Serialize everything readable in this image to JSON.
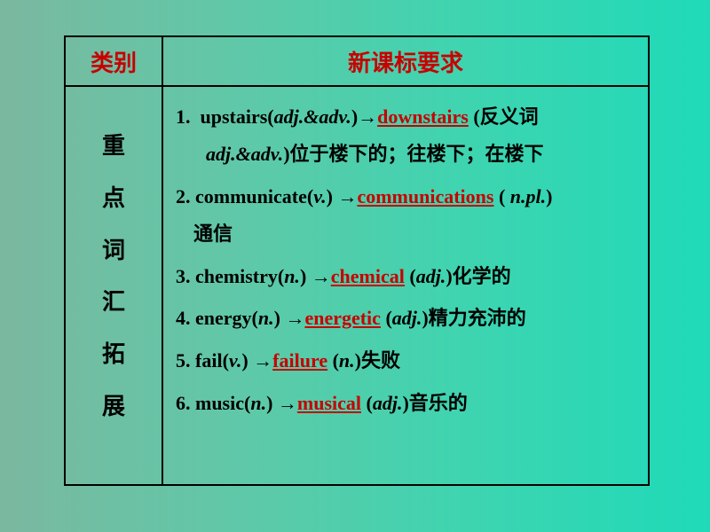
{
  "colors": {
    "accent_red": "#c80000",
    "border": "#000000",
    "text": "#000000",
    "bg_gradient_start": "#7bb8a0",
    "bg_gradient_end": "#1fdab8"
  },
  "header": {
    "col1": "类别",
    "col2": "新课标要求"
  },
  "side_label": [
    "重",
    "点",
    "词",
    "汇",
    "拓",
    "展"
  ],
  "entries": [
    {
      "num": "1.",
      "base_word": "upstairs",
      "base_pos": "adj.&adv.",
      "derived": "downstairs",
      "derived_after": "  (反义词",
      "line2_pos": "adj.&adv.",
      "line2_cn": ")位于楼下的；往楼下；在楼下"
    },
    {
      "num": "2.",
      "base_word": "communicate",
      "base_pos": "v.",
      "derived": "communications",
      "derived_after": " ( ",
      "derived_pos": "n.pl.",
      "derived_after2": ")",
      "line2_cn": "通信"
    },
    {
      "num": "3.",
      "base_word": "chemistry",
      "base_pos": "n.",
      "derived": "chemical",
      "derived_after": " (",
      "derived_pos": "adj.",
      "derived_after2": ")化学的"
    },
    {
      "num": "4.",
      "base_word": "energy",
      "base_pos": "n.",
      "derived": "energetic",
      "derived_after": " (",
      "derived_pos": "adj.",
      "derived_after2": ")精力充沛的"
    },
    {
      "num": "5.",
      "base_word": "fail",
      "base_pos": "v.",
      "derived": "failure",
      "derived_after": " (",
      "derived_pos": "n.",
      "derived_after2": ")失败"
    },
    {
      "num": "6.",
      "base_word": "music",
      "base_pos": "n.",
      "derived": "musical",
      "derived_after": " (",
      "derived_pos": "adj.",
      "derived_after2": ")音乐的"
    }
  ]
}
